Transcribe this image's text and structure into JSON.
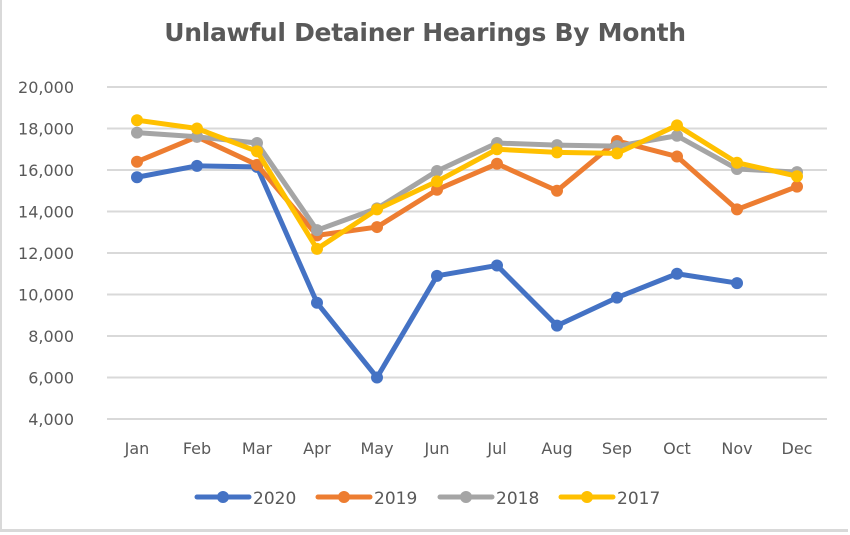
{
  "chart_data": {
    "type": "line",
    "title": "Unlawful Detainer Hearings By Month",
    "xlabel": "",
    "ylabel": "",
    "categories": [
      "Jan",
      "Feb",
      "Mar",
      "Apr",
      "May",
      "Jun",
      "Jul",
      "Aug",
      "Sep",
      "Oct",
      "Nov",
      "Dec"
    ],
    "ylim": [
      4000,
      20000
    ],
    "yticks": [
      4000,
      6000,
      8000,
      10000,
      12000,
      14000,
      16000,
      18000,
      20000
    ],
    "ytick_labels": [
      "4,000",
      "6,000",
      "8,000",
      "10,000",
      "12,000",
      "14,000",
      "16,000",
      "18,000",
      "20,000"
    ],
    "grid": true,
    "legend_position": "bottom",
    "series": [
      {
        "name": "2020",
        "color": "#4472C4",
        "values": [
          15650,
          16200,
          16150,
          9600,
          6000,
          10900,
          11400,
          8500,
          9850,
          11000,
          10550,
          null
        ]
      },
      {
        "name": "2019",
        "color": "#ED7D31",
        "values": [
          16400,
          17600,
          16250,
          12850,
          13250,
          15050,
          16300,
          15000,
          17400,
          16650,
          14100,
          15200
        ]
      },
      {
        "name": "2018",
        "color": "#A5A5A5",
        "values": [
          17800,
          17600,
          17300,
          13100,
          14150,
          15950,
          17300,
          17200,
          17150,
          17650,
          16050,
          15900
        ]
      },
      {
        "name": "2017",
        "color": "#FFC000",
        "values": [
          18400,
          18000,
          16900,
          12200,
          14100,
          15450,
          17000,
          16850,
          16800,
          18150,
          16350,
          15700
        ]
      }
    ]
  }
}
